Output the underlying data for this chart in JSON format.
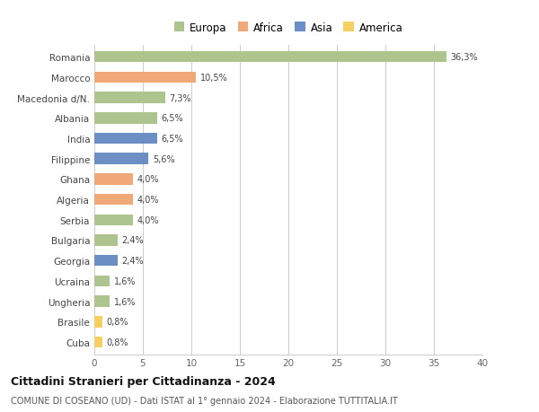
{
  "countries": [
    "Romania",
    "Marocco",
    "Macedonia d/N.",
    "Albania",
    "India",
    "Filippine",
    "Ghana",
    "Algeria",
    "Serbia",
    "Bulgaria",
    "Georgia",
    "Ucraina",
    "Ungheria",
    "Brasile",
    "Cuba"
  ],
  "values": [
    36.3,
    10.5,
    7.3,
    6.5,
    6.5,
    5.6,
    4.0,
    4.0,
    4.0,
    2.4,
    2.4,
    1.6,
    1.6,
    0.8,
    0.8
  ],
  "labels": [
    "36,3%",
    "10,5%",
    "7,3%",
    "6,5%",
    "6,5%",
    "5,6%",
    "4,0%",
    "4,0%",
    "4,0%",
    "2,4%",
    "2,4%",
    "1,6%",
    "1,6%",
    "0,8%",
    "0,8%"
  ],
  "continents": [
    "Europa",
    "Africa",
    "Europa",
    "Europa",
    "Asia",
    "Asia",
    "Africa",
    "Africa",
    "Europa",
    "Europa",
    "Asia",
    "Europa",
    "Europa",
    "America",
    "America"
  ],
  "continent_colors": {
    "Europa": "#aec48e",
    "Africa": "#f0a878",
    "Asia": "#6b8fc4",
    "America": "#f5d060"
  },
  "legend_order": [
    "Europa",
    "Africa",
    "Asia",
    "America"
  ],
  "title": "Cittadini Stranieri per Cittadinanza - 2024",
  "subtitle": "COMUNE DI COSEANO (UD) - Dati ISTAT al 1° gennaio 2024 - Elaborazione TUTTITALIA.IT",
  "xlim": [
    0,
    40
  ],
  "xticks": [
    0,
    5,
    10,
    15,
    20,
    25,
    30,
    35,
    40
  ],
  "background_color": "#ffffff",
  "grid_color": "#cccccc",
  "bar_height": 0.55,
  "figsize": [
    6.0,
    4.6
  ],
  "dpi": 100
}
